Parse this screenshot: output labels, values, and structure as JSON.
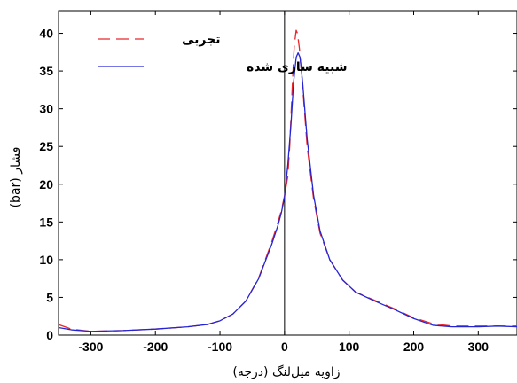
{
  "chart_data": {
    "type": "line",
    "xlabel": "زاویه میل‌لنگ (درجه)",
    "ylabel": "فشار (bar)",
    "xlim": [
      -350,
      360
    ],
    "ylim": [
      0,
      43
    ],
    "x_ticks": [
      -300,
      -200,
      -100,
      0,
      100,
      200,
      300
    ],
    "y_ticks": [
      0,
      5,
      10,
      15,
      20,
      25,
      30,
      35,
      40
    ],
    "grid": false,
    "legend_position": "top-left",
    "vertical_line_x": 0,
    "series": [
      {
        "name": "تجربی",
        "color": "#e8262b",
        "dash": "dashed",
        "points": [
          [
            -350,
            1.4
          ],
          [
            -330,
            0.8
          ],
          [
            -300,
            0.5
          ],
          [
            -250,
            0.6
          ],
          [
            -200,
            0.8
          ],
          [
            -150,
            1.1
          ],
          [
            -120,
            1.4
          ],
          [
            -100,
            1.9
          ],
          [
            -80,
            2.8
          ],
          [
            -60,
            4.5
          ],
          [
            -40,
            7.6
          ],
          [
            -20,
            12.3
          ],
          [
            -10,
            15.0
          ],
          [
            -5,
            16.5
          ],
          [
            0,
            18.5
          ],
          [
            5,
            21.0
          ],
          [
            8,
            25.0
          ],
          [
            12,
            33.0
          ],
          [
            15,
            38.3
          ],
          [
            18,
            40.4
          ],
          [
            20,
            40.0
          ],
          [
            23,
            38.0
          ],
          [
            28,
            33.0
          ],
          [
            35,
            25.0
          ],
          [
            45,
            18.0
          ],
          [
            55,
            13.5
          ],
          [
            70,
            10.0
          ],
          [
            90,
            7.3
          ],
          [
            110,
            5.7
          ],
          [
            140,
            4.6
          ],
          [
            170,
            3.5
          ],
          [
            200,
            2.3
          ],
          [
            230,
            1.5
          ],
          [
            260,
            1.2
          ],
          [
            300,
            1.2
          ],
          [
            330,
            1.2
          ],
          [
            360,
            1.2
          ]
        ]
      },
      {
        "name": "شبیه سازی شده",
        "color": "#2424d6",
        "dash": "solid",
        "points": [
          [
            -350,
            1.0
          ],
          [
            -330,
            0.7
          ],
          [
            -300,
            0.5
          ],
          [
            -250,
            0.6
          ],
          [
            -200,
            0.8
          ],
          [
            -150,
            1.1
          ],
          [
            -120,
            1.4
          ],
          [
            -100,
            1.9
          ],
          [
            -80,
            2.8
          ],
          [
            -60,
            4.5
          ],
          [
            -40,
            7.5
          ],
          [
            -20,
            12.0
          ],
          [
            -10,
            14.6
          ],
          [
            -5,
            16.2
          ],
          [
            0,
            18.3
          ],
          [
            5,
            22.5
          ],
          [
            10,
            28.0
          ],
          [
            14,
            33.5
          ],
          [
            18,
            36.8
          ],
          [
            21,
            37.4
          ],
          [
            24,
            36.8
          ],
          [
            28,
            33.5
          ],
          [
            35,
            26.0
          ],
          [
            45,
            18.5
          ],
          [
            55,
            13.8
          ],
          [
            70,
            10.0
          ],
          [
            90,
            7.3
          ],
          [
            110,
            5.7
          ],
          [
            140,
            4.5
          ],
          [
            170,
            3.4
          ],
          [
            200,
            2.2
          ],
          [
            230,
            1.3
          ],
          [
            260,
            1.1
          ],
          [
            300,
            1.1
          ],
          [
            330,
            1.2
          ],
          [
            360,
            1.1
          ]
        ]
      }
    ]
  }
}
